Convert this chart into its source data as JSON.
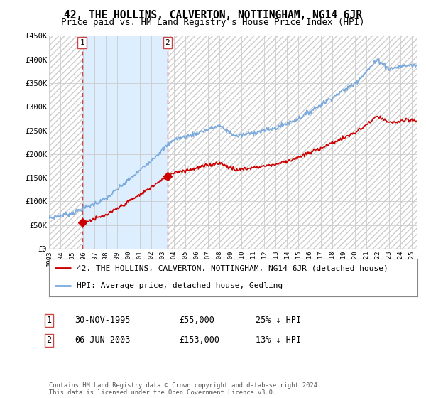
{
  "title": "42, THE HOLLINS, CALVERTON, NOTTINGHAM, NG14 6JR",
  "subtitle": "Price paid vs. HM Land Registry's House Price Index (HPI)",
  "ylim": [
    0,
    450000
  ],
  "yticks": [
    0,
    50000,
    100000,
    150000,
    200000,
    250000,
    300000,
    350000,
    400000,
    450000
  ],
  "ytick_labels": [
    "£0",
    "£50K",
    "£100K",
    "£150K",
    "£200K",
    "£250K",
    "£300K",
    "£350K",
    "£400K",
    "£450K"
  ],
  "xlim_start": 1993.0,
  "xlim_end": 2025.5,
  "xtick_years": [
    1993,
    1994,
    1995,
    1996,
    1997,
    1998,
    1999,
    2000,
    2001,
    2002,
    2003,
    2004,
    2005,
    2006,
    2007,
    2008,
    2009,
    2010,
    2011,
    2012,
    2013,
    2014,
    2015,
    2016,
    2017,
    2018,
    2019,
    2020,
    2021,
    2022,
    2023,
    2024,
    2025
  ],
  "hpi_color": "#7aaadd",
  "price_color": "#cc0000",
  "vline_color": "#cc4444",
  "shade_color": "#ddeeff",
  "background_color": "#ffffff",
  "grid_color": "#cccccc",
  "sale1_date": 1995.92,
  "sale1_price": 55000,
  "sale1_label": "1",
  "sale2_date": 2003.44,
  "sale2_price": 153000,
  "sale2_label": "2",
  "legend_line1": "42, THE HOLLINS, CALVERTON, NOTTINGHAM, NG14 6JR (detached house)",
  "legend_line2": "HPI: Average price, detached house, Gedling",
  "footer": "Contains HM Land Registry data © Crown copyright and database right 2024.\nThis data is licensed under the Open Government Licence v3.0.",
  "title_fontsize": 10.5,
  "subtitle_fontsize": 9,
  "table_fontsize": 8.5,
  "legend_fontsize": 8
}
